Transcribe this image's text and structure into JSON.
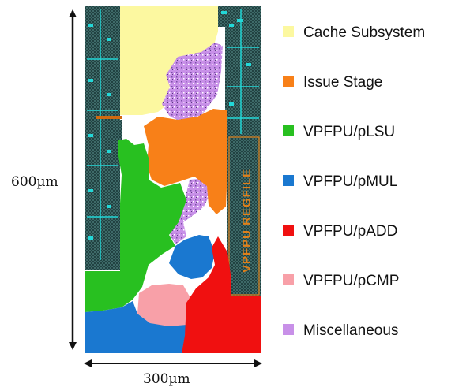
{
  "dimensions": {
    "height_label": "600µm",
    "width_label": "300µm"
  },
  "macro_label": "VPFPU REGFILE",
  "legend": [
    {
      "label": "Cache Subsystem",
      "color": "#fcf8a0"
    },
    {
      "label": "Issue Stage",
      "color": "#f88018"
    },
    {
      "label": "VPFPU/pLSU",
      "color": "#28c020"
    },
    {
      "label": "VPFPU/pMUL",
      "color": "#1a78d0"
    },
    {
      "label": "VPFPU/pADD",
      "color": "#f01010"
    },
    {
      "label": "VPFPU/pCMP",
      "color": "#f8a0a8"
    },
    {
      "label": "Miscellaneous",
      "color": "#c890e8"
    }
  ],
  "colors": {
    "sram_dark": "#1c3a3a",
    "sram_accent": "#22d8d8",
    "background": "#ffffff"
  }
}
